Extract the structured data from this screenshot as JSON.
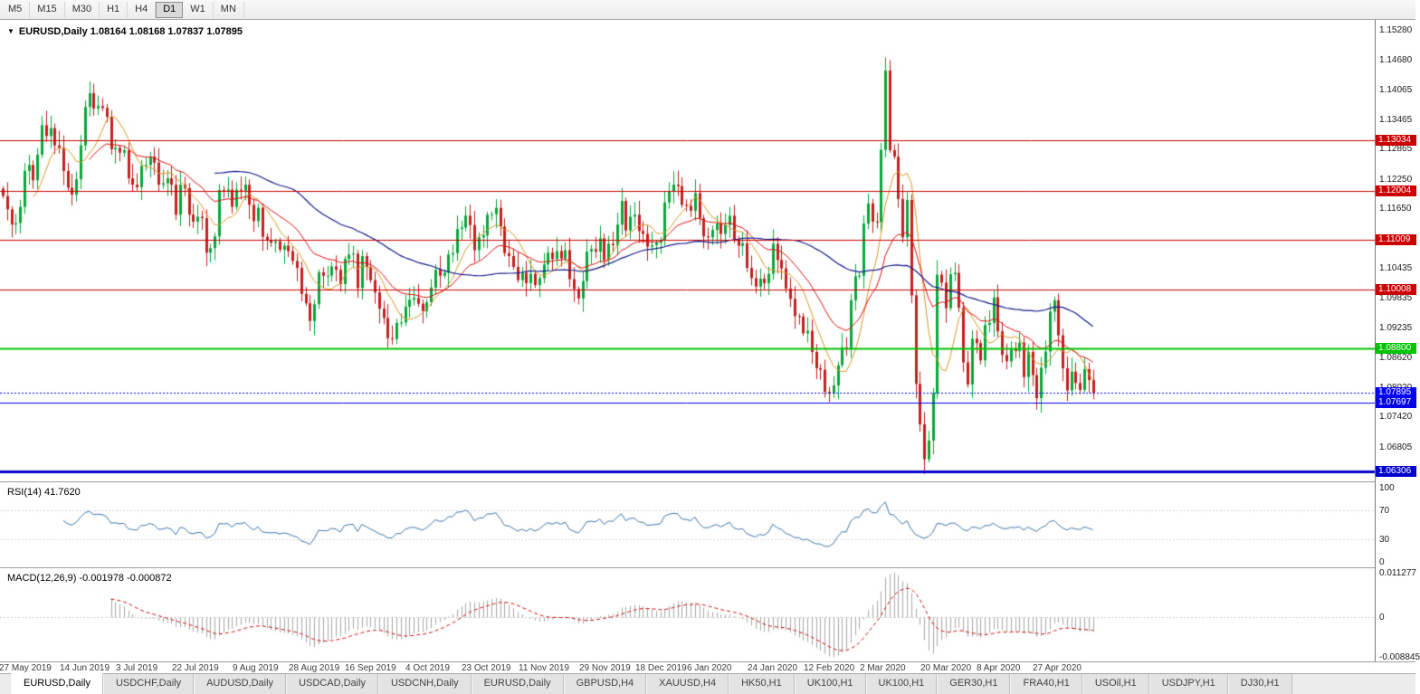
{
  "toolbar": {
    "timeframes": [
      "M5",
      "M15",
      "M30",
      "H1",
      "H4",
      "D1",
      "W1",
      "MN"
    ],
    "active": "D1"
  },
  "chart_data": {
    "type": "candlestick",
    "symbol": "EURUSD",
    "timeframe": "Daily",
    "title": "EURUSD,Daily  1.08164 1.08168 1.07837 1.07895",
    "quote": {
      "open": 1.08164,
      "high": 1.08168,
      "low": 1.07837,
      "close": 1.07895
    },
    "first_open": 1.1205,
    "closes": [
      1.119,
      1.1163,
      1.1132,
      1.1135,
      1.1168,
      1.1241,
      1.1253,
      1.1222,
      1.1274,
      1.1334,
      1.1312,
      1.1328,
      1.1293,
      1.1288,
      1.1241,
      1.1207,
      1.1193,
      1.1224,
      1.1293,
      1.1371,
      1.1399,
      1.1368,
      1.1373,
      1.1369,
      1.1351,
      1.1285,
      1.1288,
      1.1278,
      1.1283,
      1.1226,
      1.1213,
      1.1208,
      1.1251,
      1.1253,
      1.127,
      1.1258,
      1.1213,
      1.1216,
      1.1226,
      1.1213,
      1.1152,
      1.1213,
      1.1206,
      1.1152,
      1.1138,
      1.1148,
      1.1145,
      1.1075,
      1.1084,
      1.1108,
      1.1202,
      1.12,
      1.1203,
      1.1168,
      1.1203,
      1.1201,
      1.1213,
      1.1172,
      1.1139,
      1.1166,
      1.1107,
      1.11,
      1.1095,
      1.1098,
      1.1081,
      1.1089,
      1.1078,
      1.1058,
      1.1044,
      1.0991,
      1.0972,
      1.0936,
      1.097,
      1.1035,
      1.1028,
      1.1028,
      1.1047,
      1.104,
      1.1011,
      1.1062,
      1.1071,
      1.1073,
      1.1003,
      1.1068,
      1.1046,
      1.1019,
      1.0994,
      1.0961,
      1.0942,
      1.0901,
      1.0899,
      1.0932,
      1.0933,
      1.0965,
      1.0979,
      1.0983,
      1.0971,
      1.0956,
      1.0974,
      1.1004,
      1.104,
      1.1028,
      1.1034,
      1.1071,
      1.1074,
      1.1123,
      1.1126,
      1.115,
      1.1131,
      1.108,
      1.1106,
      1.111,
      1.1152,
      1.1153,
      1.1166,
      1.1128,
      1.1074,
      1.1068,
      1.1046,
      1.1019,
      1.1034,
      1.1013,
      1.1032,
      1.1009,
      1.1023,
      1.1051,
      1.1075,
      1.1062,
      1.1078,
      1.1063,
      1.108,
      1.1021,
      1.1001,
      1.0982,
      1.1017,
      1.1077,
      1.1082,
      1.1077,
      1.1104,
      1.106,
      1.1093,
      1.109,
      1.1132,
      1.118,
      1.112,
      1.1148,
      1.1152,
      1.1119,
      1.1113,
      1.1087,
      1.109,
      1.1095,
      1.11,
      1.1177,
      1.12,
      1.1213,
      1.121,
      1.1172,
      1.117,
      1.116,
      1.1196,
      1.1145,
      1.1108,
      1.1106,
      1.1121,
      1.1134,
      1.1113,
      1.1131,
      1.115,
      1.1103,
      1.1089,
      1.1094,
      1.1044,
      1.1023,
      1.1006,
      1.1022,
      1.1013,
      1.1032,
      1.1093,
      1.106,
      1.1043,
      1.1002,
      1.0981,
      1.0946,
      1.0945,
      1.0911,
      1.0916,
      1.0873,
      1.084,
      1.0837,
      1.0792,
      1.0789,
      1.0805,
      1.0846,
      1.0882,
      1.088,
      1.0978,
      1.1027,
      1.1028,
      1.1134,
      1.1175,
      1.1138,
      1.1137,
      1.1284,
      1.1445,
      1.1283,
      1.127,
      1.1184,
      1.1106,
      1.1182,
      1.0988,
      1.0808,
      1.0726,
      1.0655,
      1.0693,
      1.0789,
      1.103,
      1.1014,
      1.0962,
      1.1031,
      1.1034,
      1.0963,
      1.0852,
      1.0807,
      1.09,
      1.0891,
      1.0856,
      1.0928,
      1.0932,
      1.0984,
      1.0915,
      1.0867,
      1.0854,
      1.088,
      1.0875,
      1.0892,
      1.0822,
      1.0873,
      1.0826,
      1.0779,
      1.0841,
      1.0874,
      1.0955,
      1.0978,
      1.0907,
      1.084,
      1.0795,
      1.0833,
      1.081,
      1.0796,
      1.0838,
      1.0816,
      1.07895
    ],
    "overrides": {
      "191": {
        "low": 1.0778
      },
      "204": {
        "high": 1.1495
      },
      "213": {
        "low": 1.0636
      },
      "252": {
        "open": 1.08164,
        "high": 1.08168,
        "low": 1.07837
      }
    },
    "style": {
      "bull_color": "#0aa83c",
      "bear_color": "#c42020"
    },
    "y_axis": {
      "range_top": 1.1548,
      "range_bottom": 1.061,
      "ticks": [
        "1.15280",
        "1.14680",
        "1.14065",
        "1.13465",
        "1.12865",
        "1.12250",
        "1.11650",
        "1.10435",
        "1.09835",
        "1.09235",
        "1.08620",
        "1.08020",
        "1.07420",
        "1.06805"
      ]
    },
    "x_axis": {
      "labels": [
        {
          "text": "27 May 2019",
          "bar": 0
        },
        {
          "text": "14 Jun 2019",
          "bar": 14
        },
        {
          "text": "3 Jul 2019",
          "bar": 27
        },
        {
          "text": "22 Jul 2019",
          "bar": 40
        },
        {
          "text": "9 Aug 2019",
          "bar": 54
        },
        {
          "text": "28 Aug 2019",
          "bar": 67
        },
        {
          "text": "16 Sep 2019",
          "bar": 80
        },
        {
          "text": "4 Oct 2019",
          "bar": 94
        },
        {
          "text": "23 Oct 2019",
          "bar": 107
        },
        {
          "text": "11 Nov 2019",
          "bar": 120
        },
        {
          "text": "29 Nov 2019",
          "bar": 134
        },
        {
          "text": "18 Dec 2019",
          "bar": 147
        },
        {
          "text": "6 Jan 2020",
          "bar": 159
        },
        {
          "text": "24 Jan 2020",
          "bar": 173
        },
        {
          "text": "12 Feb 2020",
          "bar": 186
        },
        {
          "text": "2 Mar 2020",
          "bar": 199
        },
        {
          "text": "20 Mar 2020",
          "bar": 213
        },
        {
          "text": "8 Apr 2020",
          "bar": 226
        },
        {
          "text": "27 Apr 2020",
          "bar": 239
        }
      ]
    },
    "hlines": [
      {
        "label": "1.13034",
        "price": 1.13034,
        "color": "#cc0000",
        "width": 1,
        "line": "solid"
      },
      {
        "label": "1.12004",
        "price": 1.12004,
        "color": "#cc0000",
        "width": 1,
        "line": "solid"
      },
      {
        "label": "1.11009",
        "price": 1.11009,
        "color": "#cc0000",
        "width": 1,
        "line": "solid"
      },
      {
        "label": "1.10008",
        "price": 1.10008,
        "color": "#cc0000",
        "width": 1,
        "line": "solid"
      },
      {
        "label": "1.08800",
        "price": 1.088,
        "color": "#00c400",
        "width": 2,
        "line": "solid"
      },
      {
        "label": "1.07895",
        "price": 1.07895,
        "color": "#0000ff",
        "width": 1,
        "line": "dotted"
      },
      {
        "label": "1.07697",
        "price": 1.07697,
        "color": "#0000e6",
        "width": 1,
        "line": "solid"
      },
      {
        "label": "1.06306",
        "price": 1.06306,
        "color": "#0000cc",
        "width": 3,
        "line": "solid"
      }
    ],
    "moving_averages": [
      {
        "name": "fast-ma",
        "type": "sma",
        "period": 8,
        "color": "#d89a28",
        "width": 1
      },
      {
        "name": "medium-ma",
        "type": "ema",
        "period": 21,
        "color": "#e01010",
        "width": 1
      },
      {
        "name": "slow-ma",
        "type": "sma",
        "period": 50,
        "color": "#141c8c",
        "width": 1.2
      }
    ],
    "rsi": {
      "label": "RSI(14) 41.7620",
      "period": 14,
      "current": 41.762,
      "color": "#3f76ad",
      "levels": [
        70,
        30
      ],
      "ticks": [
        "100",
        "70",
        "30",
        "0"
      ]
    },
    "macd": {
      "label": "MACD(12,26,9) -0.001978 -0.000872",
      "fast": 12,
      "slow": 26,
      "signal_period": 9,
      "current_macd": -0.001978,
      "current_signal": -0.000872,
      "histogram_color": "#a8a8a8",
      "signal_color": "#cc1111",
      "ticks": [
        "0.011277",
        "0",
        "-0.008845"
      ]
    }
  },
  "tabs": {
    "active_index": 0,
    "items": [
      "EURUSD,Daily",
      "USDCHF,Daily",
      "AUDUSD,Daily",
      "USDCAD,Daily",
      "USDCNH,Daily",
      "EURUSD,Daily",
      "GBPUSD,H4",
      "XAUUSD,H4",
      "HK50,H1",
      "UK100,H1",
      "UK100,H1",
      "GER30,H1",
      "FRA40,H1",
      "USOil,H1",
      "USDJPY,H1",
      "DJ30,H1"
    ]
  }
}
